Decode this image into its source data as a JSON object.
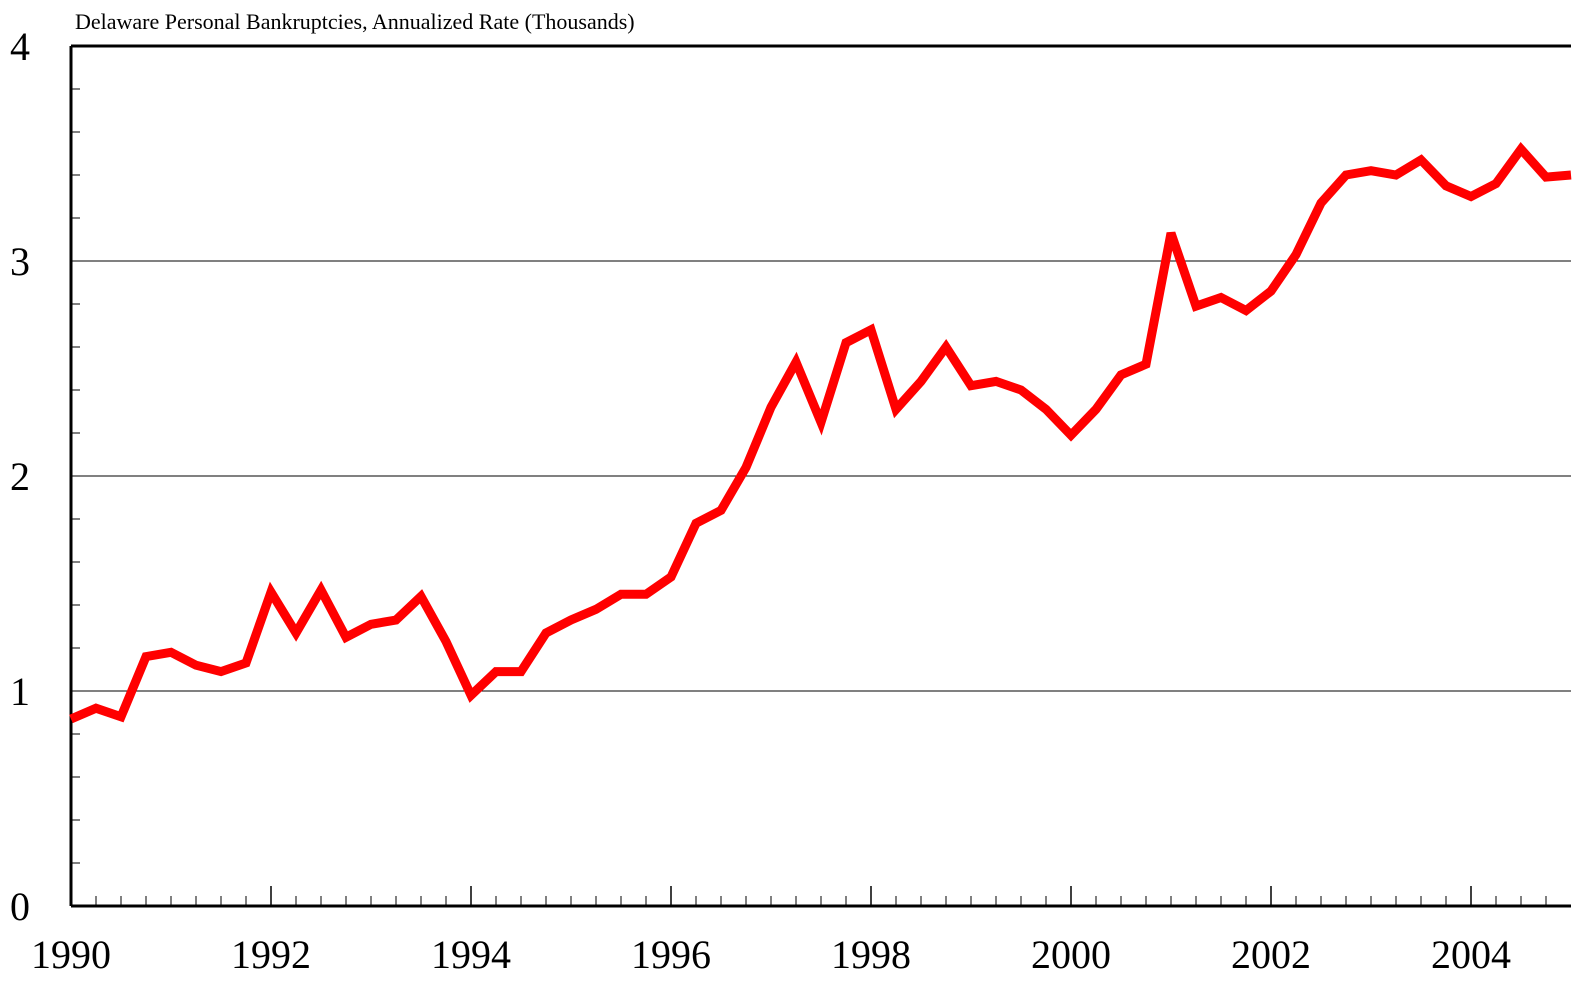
{
  "chart_data": {
    "type": "line",
    "title": "Delaware Personal Bankruptcies, Annualized Rate (Thousands)",
    "x": [
      1990,
      1990.25,
      1990.5,
      1990.75,
      1991,
      1991.25,
      1991.5,
      1991.75,
      1992,
      1992.25,
      1992.5,
      1992.75,
      1993,
      1993.25,
      1993.5,
      1993.75,
      1994,
      1994.25,
      1994.5,
      1994.75,
      1995,
      1995.25,
      1995.5,
      1995.75,
      1996,
      1996.25,
      1996.5,
      1996.75,
      1997,
      1997.25,
      1997.5,
      1997.75,
      1998,
      1998.25,
      1998.5,
      1998.75,
      1999,
      1999.25,
      1999.5,
      1999.75,
      2000,
      2000.25,
      2000.5,
      2000.75,
      2001,
      2001.25,
      2001.5,
      2001.75,
      2002,
      2002.25,
      2002.5,
      2002.75,
      2003,
      2003.25,
      2003.5,
      2003.75,
      2004,
      2004.25,
      2004.5,
      2004.75,
      2005
    ],
    "series": [
      {
        "name": "Delaware Personal Bankruptcies",
        "color": "#ff0000",
        "values": [
          0.87,
          0.92,
          0.88,
          1.16,
          1.18,
          1.12,
          1.09,
          1.13,
          1.46,
          1.27,
          1.47,
          1.25,
          1.31,
          1.33,
          1.44,
          1.23,
          0.98,
          1.09,
          1.09,
          1.27,
          1.33,
          1.38,
          1.45,
          1.45,
          1.53,
          1.78,
          1.84,
          2.04,
          2.32,
          2.53,
          2.25,
          2.62,
          2.68,
          2.31,
          2.44,
          2.6,
          2.42,
          2.44,
          2.4,
          2.31,
          2.19,
          2.31,
          2.47,
          2.52,
          3.13,
          2.79,
          2.83,
          2.77,
          2.86,
          3.03,
          3.27,
          3.4,
          3.42,
          3.4,
          3.47,
          3.35,
          3.3,
          3.36,
          3.52,
          3.39,
          3.4
        ]
      }
    ],
    "xlim": [
      1990,
      2005
    ],
    "xticks": [
      1990,
      1992,
      1994,
      1996,
      1998,
      2000,
      2002,
      2004
    ],
    "xminor_step": 0.25,
    "ylim": [
      0,
      4
    ],
    "yticks": [
      0,
      1,
      2,
      3,
      4
    ],
    "yminor_step": 0.2,
    "grid": true
  }
}
